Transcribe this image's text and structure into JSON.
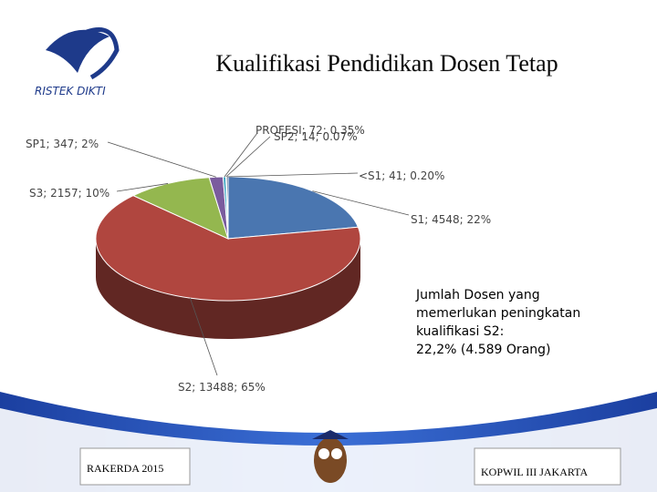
{
  "logo": "RISTEK DIKTI",
  "chart_data": {
    "type": "pie",
    "title": "Kualifikasi Pendidikan Dosen Tetap",
    "categories": [
      "S1",
      "S2",
      "S3",
      "SP1",
      "PROFESI",
      "SP2",
      "<S1"
    ],
    "values": [
      4548,
      13488,
      2157,
      347,
      72,
      14,
      41
    ],
    "value_labels": [
      "S1; 4548; 22%",
      "S2; 13488; 65%",
      "S3; 2157; 10%",
      "SP1; 347; 2%",
      "PROFESI; 72; 0.35%",
      "SP2; 14; 0.07%",
      "<S1; 41; 0.20%"
    ],
    "colors": [
      "#4a76b0",
      "#b0463f",
      "#94b74f",
      "#7a5c9e",
      "#3ea6c2",
      "#f0923f",
      "#2d4d78"
    ],
    "annotation": [
      "Jumlah Dosen yang",
      "memerlukan peningkatan",
      "kualifikasi S2:",
      "22,2% (4.589 Orang)"
    ]
  },
  "footer": {
    "left": "RAKERDA 2015",
    "right": "KOPWIL III JAKARTA"
  }
}
